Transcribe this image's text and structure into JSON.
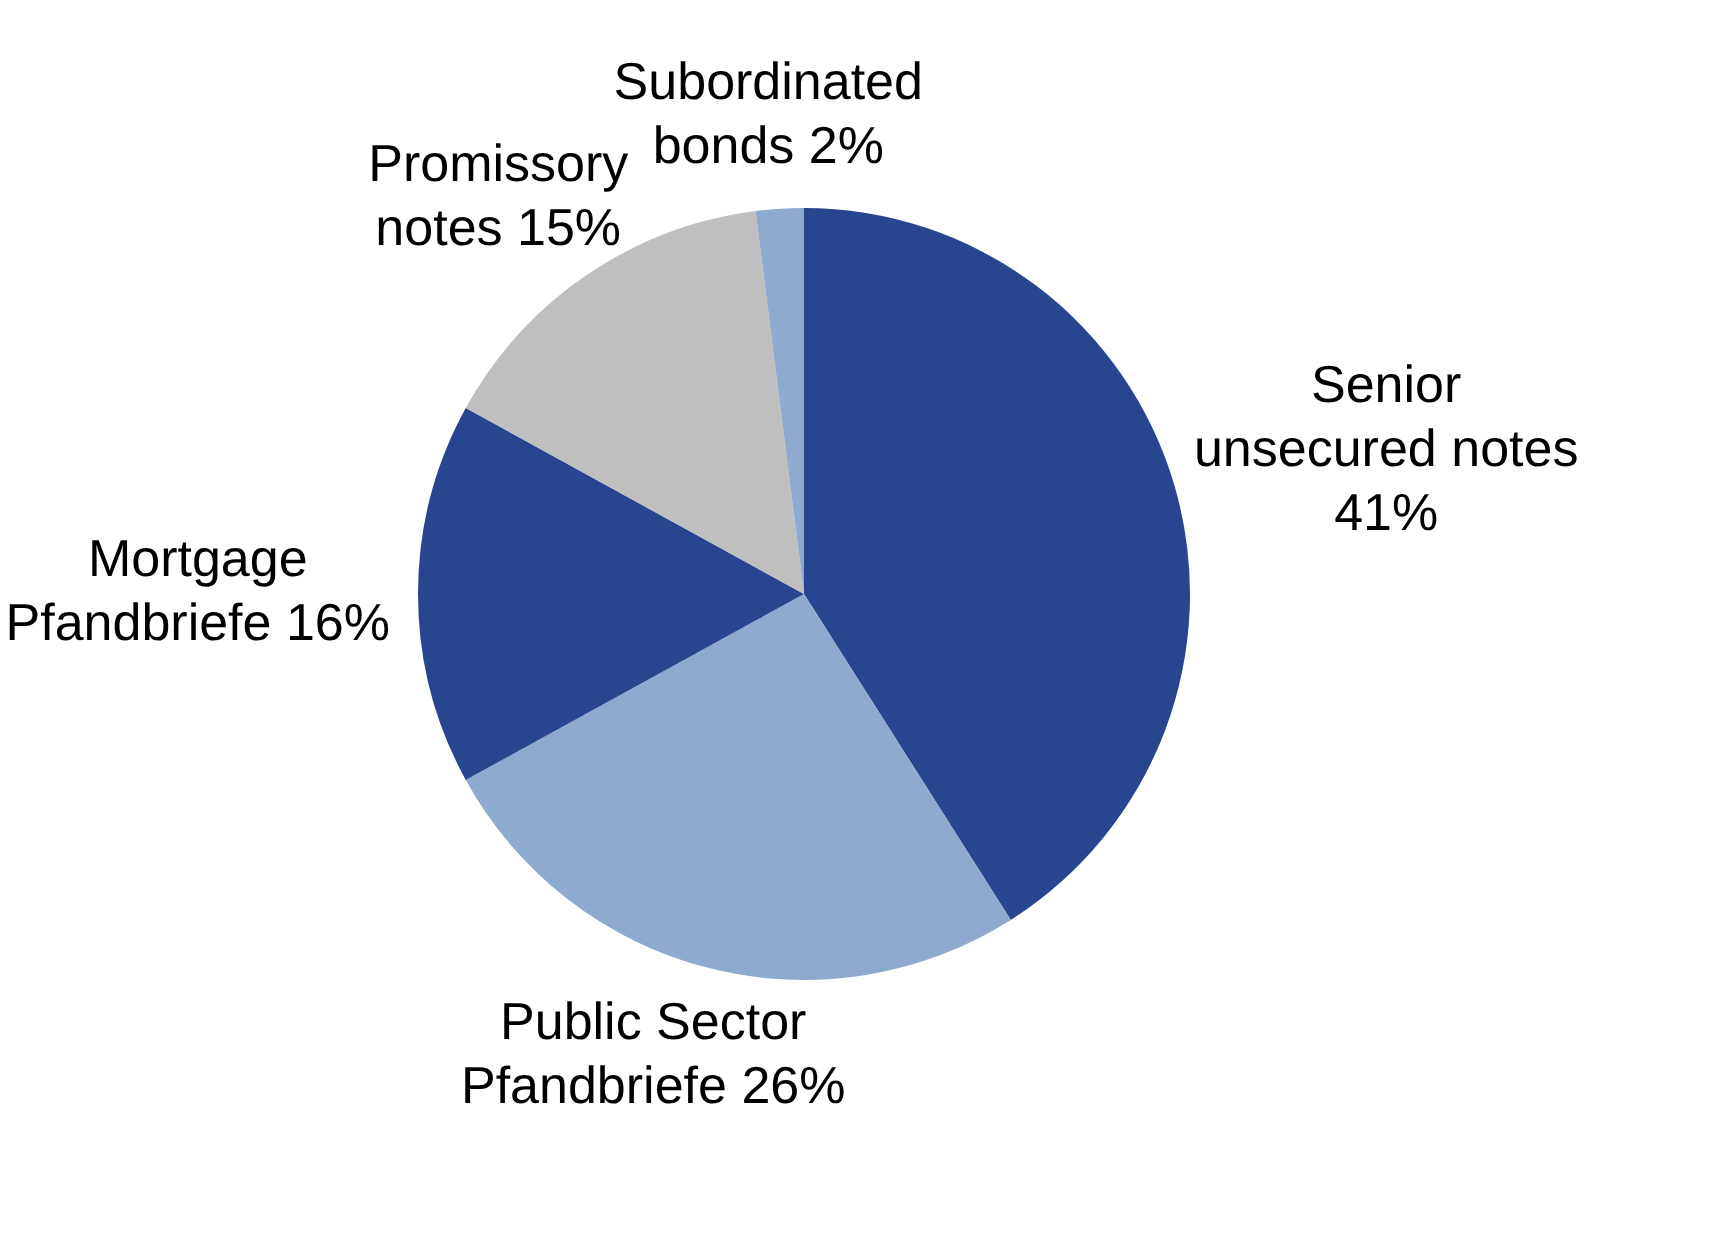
{
  "chart_data": {
    "type": "pie",
    "categories": [
      "Senior unsecured notes",
      "Public Sector Pfandbriefe",
      "Mortgage Pfandbriefe",
      "Promissory notes",
      "Subordinated bonds"
    ],
    "values": [
      41,
      26,
      16,
      15,
      2
    ],
    "value_labels": [
      "41%",
      "26%",
      "16%",
      "15%",
      "2%"
    ],
    "colors": [
      "#27468f",
      "#8eaacf",
      "#27468f",
      "#bfbfbf",
      "#8eaacf"
    ],
    "legend": false
  }
}
